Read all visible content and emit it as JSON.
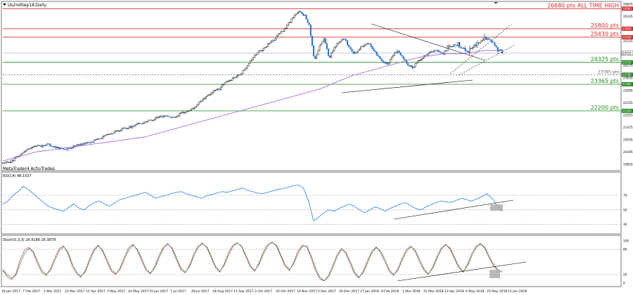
{
  "window": {
    "title": "Us2ndSep18,Daily",
    "broker_label": "MetaTrader4 ActivTrades"
  },
  "colors": {
    "frame": "#7a7a7a",
    "candle_up": "#000000",
    "candle_down": "#1f6fd6",
    "sma": "#a05cd6",
    "red_level": "#d42a2a",
    "green_level": "#1f8a1f",
    "trend": "#000000",
    "rsi_line": "#2a7ee8",
    "stoch_main": "#c23a3a",
    "stoch_signal": "#2e8b57",
    "shade": "#a8a8a8",
    "tag_red": "#d42a2a",
    "tag_green": "#1f8a1f"
  },
  "chart_data": [
    {
      "type": "candlestick",
      "title": "Us2ndSep18,Daily",
      "x_labels": [
        "16 Jan 2017",
        "7 Feb 2017",
        "1 Mar 2017",
        "21 Mar 2017",
        "12 Apr 2017",
        "3 May 2017",
        "24 May 2017",
        "15 Jun 2017",
        "7 Jul 2017",
        "28 Jul 2017",
        "18 Aug 2017",
        "11 Sep 2017",
        "2 Oct 2017",
        "23 Oct 2017",
        "14 Nov 2017",
        "5 Dec 2017",
        "26 Dec 2017",
        "17 Jan 2018",
        "8 Feb 2018",
        "1 Mar 2018",
        "22 Mar 2018",
        "13 Apr 2018",
        "4 May 2018",
        "25 May 2018",
        "15 Jun 2018"
      ],
      "y_ticks": [
        "26875",
        "26335",
        "25795",
        "25255",
        "24715",
        "24175",
        "23635",
        "23095",
        "22555",
        "22015",
        "21475",
        "20935",
        "20395",
        "19855"
      ],
      "ylim": [
        19855,
        26875
      ],
      "price_path": [
        19900,
        19950,
        20000,
        20200,
        20350,
        20550,
        20600,
        20700,
        20650,
        20750,
        20650,
        20600,
        20550,
        20500,
        20600,
        20700,
        20750,
        20800,
        20850,
        20950,
        21050,
        21150,
        21200,
        21300,
        21400,
        21450,
        21500,
        21600,
        21650,
        21750,
        21800,
        21900,
        21950,
        22000,
        21900,
        21950,
        22100,
        22150,
        22250,
        22400,
        22600,
        22800,
        22950,
        23100,
        23200,
        23450,
        23550,
        23700,
        23800,
        24050,
        24400,
        24650,
        24850,
        24950,
        25200,
        25350,
        25600,
        25800,
        26100,
        26400,
        26550,
        26400,
        25950,
        24400,
        25000,
        25400,
        24500,
        25000,
        25200,
        25400,
        25000,
        24700,
        24900,
        25100,
        25200,
        24800,
        24600,
        24300,
        24250,
        24700,
        24800,
        24500,
        24200,
        24100,
        24400,
        24550,
        24750,
        24800,
        24850,
        24700,
        24950,
        25000,
        25100,
        24950,
        24800,
        25000,
        25150,
        25300,
        25400,
        25200,
        24950,
        24750
      ],
      "sma_path": [
        20000,
        20100,
        20200,
        20300,
        20400,
        20450,
        20500,
        20550,
        20600,
        20650,
        20700,
        20750,
        20800,
        20850,
        20900,
        20950,
        21000,
        21050,
        21150,
        21250,
        21350,
        21450,
        21550,
        21650,
        21750,
        21850,
        21950,
        22050,
        22150,
        22250,
        22350,
        22450,
        22550,
        22650,
        22750,
        22850,
        22950,
        23050,
        23150,
        23300,
        23450,
        23600,
        23750,
        23850,
        23950,
        24050,
        24150,
        24250,
        24350,
        24450,
        24550,
        24600,
        24650,
        24700,
        24700,
        24700,
        24750,
        24800,
        24850,
        24850,
        24900
      ],
      "levels": [
        {
          "price": 26680,
          "label": "26680 pts ALL TIME HIGH",
          "tag": "26680",
          "kind": "red"
        },
        {
          "price": 25800,
          "label": "25800 pts",
          "tag": "25800",
          "kind": "red"
        },
        {
          "price": 25430,
          "label": "25430 pts",
          "tag": "25430",
          "kind": "red"
        },
        {
          "price": 24325,
          "label": "24325 pts",
          "tag": "24325",
          "kind": "green"
        },
        {
          "price": 23785,
          "label": "23785 pts",
          "tag": "23785",
          "kind": "dashed"
        },
        {
          "price": 23365,
          "label": "23365 pts",
          "tag": "23365",
          "kind": "green"
        },
        {
          "price": 22200,
          "label": "22200 pts",
          "tag": "22200",
          "kind": "green"
        }
      ],
      "current_price": {
        "value": 24725,
        "tag": "24725"
      }
    },
    {
      "type": "line",
      "title": "RSI(14) 48.1537",
      "y_ticks": [
        "70",
        "50",
        "30"
      ],
      "ylim": [
        20,
        95
      ],
      "reference_levels": [
        70,
        50,
        30
      ],
      "values": [
        58,
        62,
        70,
        75,
        82,
        78,
        72,
        66,
        60,
        55,
        52,
        50,
        48,
        54,
        58,
        52,
        50,
        56,
        60,
        62,
        58,
        55,
        60,
        64,
        66,
        68,
        70,
        72,
        74,
        70,
        66,
        68,
        70,
        72,
        74,
        75,
        72,
        70,
        68,
        66,
        69,
        71,
        73,
        75,
        74,
        76,
        78,
        80,
        77,
        75,
        73,
        72,
        74,
        76,
        78,
        79,
        81,
        83,
        84,
        80,
        62,
        35,
        40,
        46,
        50,
        48,
        52,
        55,
        58,
        55,
        50,
        46,
        50,
        54,
        52,
        48,
        52,
        55,
        58,
        60,
        56,
        52,
        50,
        54,
        57,
        60,
        62,
        61,
        60,
        63,
        66,
        64,
        62,
        65,
        68,
        72,
        66,
        56,
        48
      ]
    },
    {
      "type": "line",
      "title": "Stoch(5,3,3) 26.9186 26.3879",
      "y_ticks": [
        "100",
        "80",
        "20",
        "0"
      ],
      "ylim": [
        0,
        100
      ],
      "reference_levels": [
        80,
        20
      ],
      "series": [
        {
          "values": [
            30,
            15,
            8,
            22,
            55,
            78,
            85,
            72,
            45,
            25,
            18,
            35,
            60,
            82,
            88,
            70,
            40,
            22,
            14,
            30,
            58,
            80,
            90,
            75,
            50,
            28,
            20,
            36,
            62,
            84,
            92,
            78,
            52,
            30,
            22,
            40,
            66,
            86,
            94,
            80,
            55,
            32,
            24,
            42,
            70,
            88,
            95,
            84,
            60,
            36,
            26,
            46,
            72,
            90,
            96,
            86,
            62,
            38,
            28,
            48,
            74,
            92,
            97,
            88,
            64,
            40,
            30,
            50,
            76,
            90,
            86,
            60,
            30,
            10,
            5,
            18,
            42,
            68,
            82,
            70,
            46,
            22,
            12,
            28,
            54,
            76,
            86,
            72,
            50,
            28,
            18,
            34,
            60,
            80,
            88,
            74,
            50,
            30,
            20,
            38,
            64,
            84,
            92,
            80,
            58,
            36,
            26,
            44,
            70,
            88,
            94,
            82,
            60,
            40,
            30,
            27
          ]
        },
        {
          "values": [
            32,
            20,
            12,
            18,
            46,
            70,
            82,
            76,
            52,
            30,
            20,
            30,
            54,
            76,
            86,
            74,
            46,
            26,
            16,
            26,
            52,
            76,
            88,
            78,
            56,
            32,
            22,
            32,
            56,
            78,
            90,
            80,
            58,
            34,
            24,
            36,
            60,
            82,
            92,
            84,
            60,
            36,
            26,
            38,
            64,
            84,
            94,
            86,
            64,
            40,
            28,
            42,
            66,
            86,
            95,
            88,
            66,
            42,
            30,
            44,
            68,
            88,
            96,
            90,
            68,
            44,
            32,
            46,
            70,
            88,
            88,
            66,
            36,
            14,
            6,
            14,
            36,
            62,
            80,
            74,
            52,
            26,
            14,
            24,
            48,
            72,
            84,
            76,
            56,
            32,
            20,
            30,
            54,
            76,
            86,
            78,
            56,
            34,
            22,
            34,
            58,
            80,
            90,
            84,
            62,
            40,
            28,
            40,
            64,
            84,
            92,
            86,
            64,
            44,
            32,
            26
          ]
        }
      ]
    }
  ]
}
